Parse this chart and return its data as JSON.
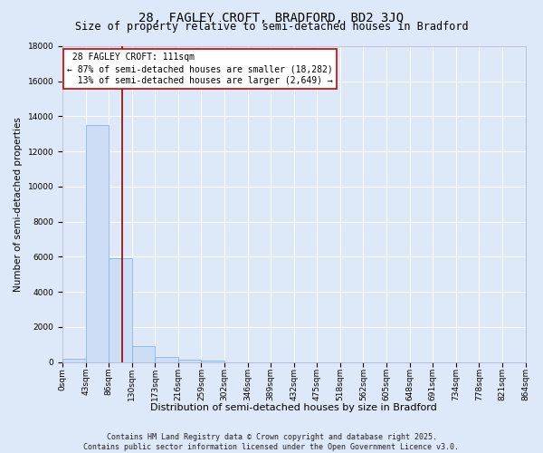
{
  "title": "28, FAGLEY CROFT, BRADFORD, BD2 3JQ",
  "subtitle": "Size of property relative to semi-detached houses in Bradford",
  "xlabel": "Distribution of semi-detached houses by size in Bradford",
  "ylabel": "Number of semi-detached properties",
  "bar_color": "#ccddf5",
  "bar_edge_color": "#7aaddd",
  "background_color": "#dde8f8",
  "axes_bg_color": "#dde8f8",
  "grid_color": "#ffffff",
  "bin_labels": [
    "0sqm",
    "43sqm",
    "86sqm",
    "130sqm",
    "173sqm",
    "216sqm",
    "259sqm",
    "302sqm",
    "346sqm",
    "389sqm",
    "432sqm",
    "475sqm",
    "518sqm",
    "562sqm",
    "605sqm",
    "648sqm",
    "691sqm",
    "734sqm",
    "778sqm",
    "821sqm",
    "864sqm"
  ],
  "bar_values": [
    200,
    13500,
    5900,
    900,
    300,
    150,
    100,
    0,
    0,
    0,
    0,
    0,
    0,
    0,
    0,
    0,
    0,
    0,
    0,
    0
  ],
  "ylim": [
    0,
    18000
  ],
  "yticks": [
    0,
    2000,
    4000,
    6000,
    8000,
    10000,
    12000,
    14000,
    16000,
    18000
  ],
  "property_size": 111,
  "property_label": "28 FAGLEY CROFT: 111sqm",
  "pct_smaller": 87,
  "num_smaller": 18282,
  "pct_larger": 13,
  "num_larger": 2649,
  "vline_color": "#990000",
  "annotation_box_edge": "#cc0000",
  "copyright_text": "Contains HM Land Registry data © Crown copyright and database right 2025.\nContains public sector information licensed under the Open Government Licence v3.0.",
  "title_fontsize": 10,
  "subtitle_fontsize": 8.5,
  "tick_fontsize": 6.5,
  "ylabel_fontsize": 7.5,
  "xlabel_fontsize": 8,
  "annotation_fontsize": 7,
  "copyright_fontsize": 6
}
